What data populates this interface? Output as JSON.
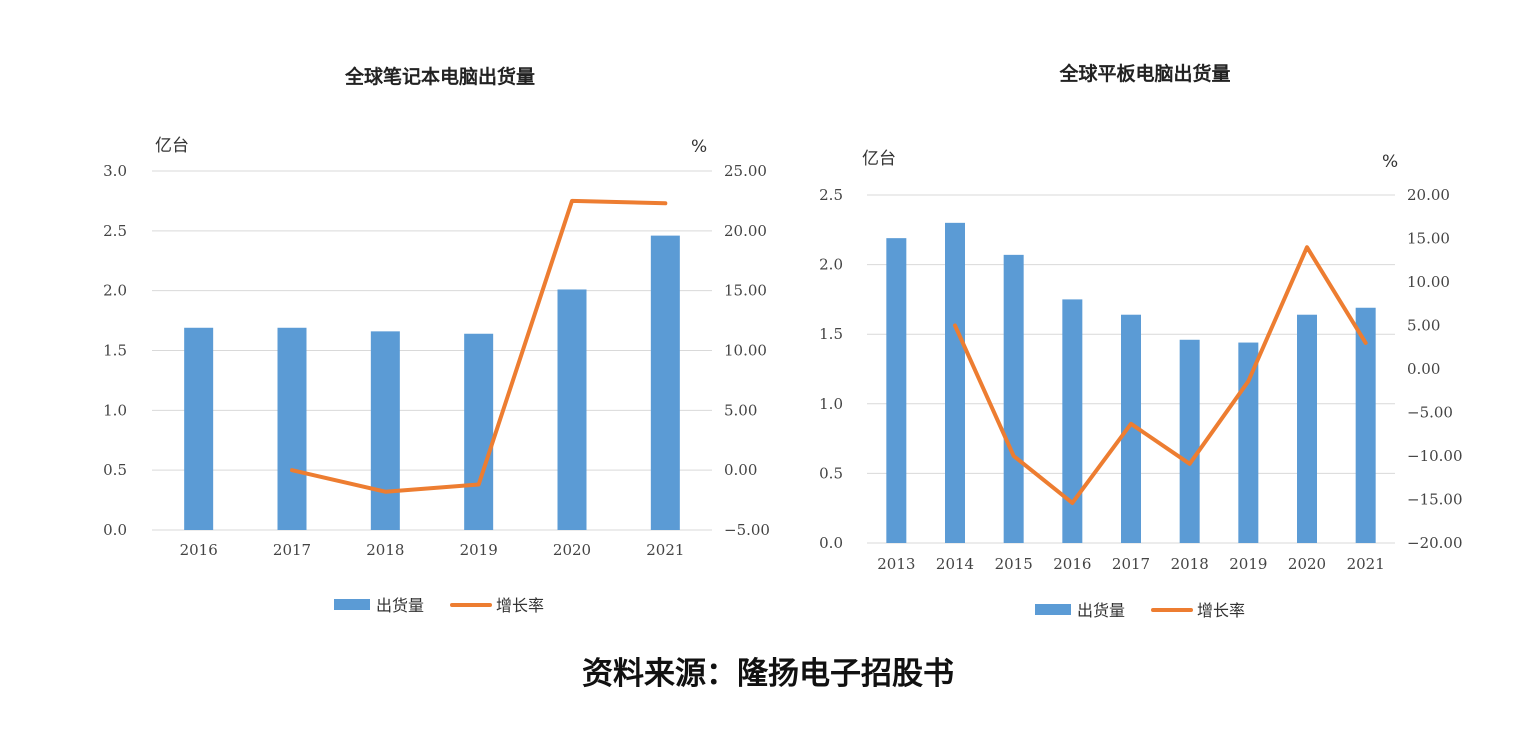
{
  "colors": {
    "bar": "#5b9bd5",
    "line": "#ed7d31",
    "grid": "#d9d9d9"
  },
  "chart_data": [
    {
      "type": "bar",
      "title": "全球笔记本电脑出货量",
      "left_unit": "亿台",
      "right_unit": "%",
      "categories": [
        "2016",
        "2017",
        "2018",
        "2019",
        "2020",
        "2021"
      ],
      "y_left": {
        "min": 0,
        "max": 3.0,
        "step": 0.5,
        "decimals": 1
      },
      "y_right": {
        "min": -5,
        "max": 25,
        "step": 5,
        "decimals": 2
      },
      "series": [
        {
          "name": "出货量",
          "type": "bar",
          "axis": "left",
          "values": [
            1.69,
            1.69,
            1.66,
            1.64,
            2.01,
            2.46
          ]
        },
        {
          "name": "增长率",
          "type": "line",
          "axis": "right",
          "values": [
            null,
            0.0,
            -1.8,
            -1.2,
            22.5,
            22.3
          ]
        }
      ],
      "legend": "bottom",
      "grid": true
    },
    {
      "type": "bar",
      "title": "全球平板电脑出货量",
      "left_unit": "亿台",
      "right_unit": "%",
      "categories": [
        "2013",
        "2014",
        "2015",
        "2016",
        "2017",
        "2018",
        "2019",
        "2020",
        "2021"
      ],
      "y_left": {
        "min": 0,
        "max": 2.5,
        "step": 0.5,
        "decimals": 1
      },
      "y_right": {
        "min": -20,
        "max": 20,
        "step": 5,
        "decimals": 2
      },
      "series": [
        {
          "name": "出货量",
          "type": "bar",
          "axis": "left",
          "values": [
            2.19,
            2.3,
            2.07,
            1.75,
            1.64,
            1.46,
            1.44,
            1.64,
            1.69
          ]
        },
        {
          "name": "增长率",
          "type": "line",
          "axis": "right",
          "values": [
            null,
            5.0,
            -10.0,
            -15.4,
            -6.3,
            -10.9,
            -1.4,
            14.0,
            3.0
          ]
        }
      ],
      "legend": "bottom",
      "grid": true
    }
  ],
  "source_text": "资料来源：隆扬电子招股书"
}
